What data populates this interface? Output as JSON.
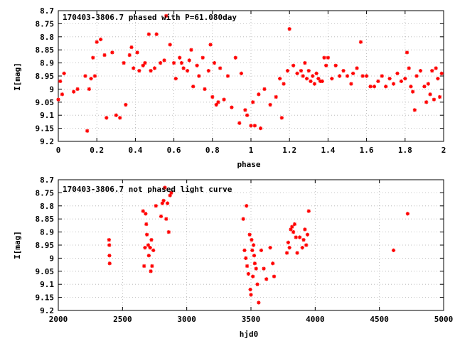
{
  "chart_data": [
    {
      "type": "scatter",
      "title": "170403-3806.7 phased with P=61.080day",
      "xlabel": "phase",
      "ylabel": "I[mag]",
      "xlim": [
        0,
        2
      ],
      "ylim": [
        8.7,
        9.2
      ],
      "y_inverted": true,
      "grid": true,
      "marker_color": "#ff0000",
      "xticks": [
        "0",
        "0.2",
        "0.4",
        "0.6",
        "0.8",
        "1",
        "1.2",
        "1.4",
        "1.6",
        "1.8",
        "2"
      ],
      "yticks": [
        "8.7",
        "8.75",
        "8.8",
        "8.85",
        "8.9",
        "8.95",
        "9",
        "9.05",
        "9.1",
        "9.15",
        "9.2"
      ],
      "series": [
        {
          "points": [
            [
              0.0,
              9.04
            ],
            [
              0.01,
              8.97
            ],
            [
              0.02,
              9.02
            ],
            [
              0.03,
              8.94
            ],
            [
              0.08,
              9.01
            ],
            [
              0.1,
              9.0
            ],
            [
              0.14,
              8.95
            ],
            [
              0.15,
              9.16
            ],
            [
              0.16,
              9.0
            ],
            [
              0.17,
              8.96
            ],
            [
              0.18,
              8.88
            ],
            [
              0.19,
              8.95
            ],
            [
              0.2,
              8.82
            ],
            [
              0.22,
              8.81
            ],
            [
              0.24,
              8.87
            ],
            [
              0.25,
              9.11
            ],
            [
              0.28,
              8.86
            ],
            [
              0.3,
              9.1
            ],
            [
              0.32,
              9.11
            ],
            [
              0.34,
              8.9
            ],
            [
              0.35,
              9.06
            ],
            [
              0.37,
              8.87
            ],
            [
              0.38,
              8.84
            ],
            [
              0.39,
              8.92
            ],
            [
              0.41,
              8.86
            ],
            [
              0.42,
              8.93
            ],
            [
              0.44,
              8.91
            ],
            [
              0.45,
              8.9
            ],
            [
              0.47,
              8.79
            ],
            [
              0.48,
              8.93
            ],
            [
              0.5,
              8.92
            ],
            [
              0.51,
              8.79
            ],
            [
              0.53,
              8.9
            ],
            [
              0.55,
              8.89
            ],
            [
              0.56,
              8.72
            ],
            [
              0.58,
              8.83
            ],
            [
              0.6,
              8.9
            ],
            [
              0.61,
              8.96
            ],
            [
              0.63,
              8.88
            ],
            [
              0.64,
              8.9
            ],
            [
              0.65,
              8.92
            ],
            [
              0.67,
              8.93
            ],
            [
              0.68,
              8.89
            ],
            [
              0.69,
              8.85
            ],
            [
              0.7,
              8.99
            ],
            [
              0.72,
              8.91
            ],
            [
              0.73,
              8.95
            ],
            [
              0.75,
              8.88
            ],
            [
              0.76,
              9.0
            ],
            [
              0.78,
              8.93
            ],
            [
              0.79,
              8.83
            ],
            [
              0.8,
              9.03
            ],
            [
              0.81,
              8.9
            ],
            [
              0.82,
              9.06
            ],
            [
              0.83,
              9.05
            ],
            [
              0.84,
              8.92
            ],
            [
              0.86,
              9.04
            ],
            [
              0.88,
              8.95
            ],
            [
              0.9,
              9.07
            ],
            [
              0.92,
              8.88
            ],
            [
              0.94,
              9.13
            ],
            [
              0.95,
              8.94
            ],
            [
              0.97,
              9.08
            ],
            [
              0.98,
              9.1
            ],
            [
              1.0,
              9.14
            ],
            [
              1.01,
              9.05
            ],
            [
              1.02,
              9.14
            ],
            [
              1.04,
              9.02
            ],
            [
              1.05,
              9.15
            ],
            [
              1.07,
              9.0
            ],
            [
              1.1,
              9.06
            ],
            [
              1.13,
              9.03
            ],
            [
              1.15,
              8.96
            ],
            [
              1.16,
              9.11
            ],
            [
              1.17,
              8.98
            ],
            [
              1.19,
              8.93
            ],
            [
              1.2,
              8.77
            ],
            [
              1.22,
              8.91
            ],
            [
              1.24,
              8.94
            ],
            [
              1.26,
              8.93
            ],
            [
              1.27,
              8.95
            ],
            [
              1.28,
              8.9
            ],
            [
              1.29,
              8.96
            ],
            [
              1.3,
              8.93
            ],
            [
              1.31,
              8.97
            ],
            [
              1.32,
              8.95
            ],
            [
              1.33,
              8.98
            ],
            [
              1.34,
              8.94
            ],
            [
              1.35,
              8.96
            ],
            [
              1.36,
              8.97
            ],
            [
              1.37,
              8.97
            ],
            [
              1.38,
              8.88
            ],
            [
              1.39,
              8.91
            ],
            [
              1.4,
              8.88
            ],
            [
              1.42,
              8.96
            ],
            [
              1.44,
              8.91
            ],
            [
              1.46,
              8.95
            ],
            [
              1.48,
              8.93
            ],
            [
              1.5,
              8.95
            ],
            [
              1.52,
              8.98
            ],
            [
              1.53,
              8.94
            ],
            [
              1.55,
              8.92
            ],
            [
              1.57,
              8.82
            ],
            [
              1.58,
              8.95
            ],
            [
              1.6,
              8.95
            ],
            [
              1.62,
              8.99
            ],
            [
              1.64,
              8.99
            ],
            [
              1.66,
              8.97
            ],
            [
              1.68,
              8.95
            ],
            [
              1.7,
              8.99
            ],
            [
              1.72,
              8.96
            ],
            [
              1.74,
              8.98
            ],
            [
              1.76,
              8.94
            ],
            [
              1.78,
              8.97
            ],
            [
              1.8,
              8.96
            ],
            [
              1.81,
              8.86
            ],
            [
              1.82,
              8.92
            ],
            [
              1.83,
              8.99
            ],
            [
              1.84,
              9.01
            ],
            [
              1.85,
              9.08
            ],
            [
              1.86,
              8.95
            ],
            [
              1.88,
              8.93
            ],
            [
              1.9,
              8.99
            ],
            [
              1.91,
              9.05
            ],
            [
              1.92,
              8.98
            ],
            [
              1.93,
              9.02
            ],
            [
              1.94,
              8.93
            ],
            [
              1.95,
              9.04
            ],
            [
              1.96,
              8.92
            ],
            [
              1.97,
              8.96
            ],
            [
              1.98,
              9.03
            ],
            [
              1.99,
              8.94
            ]
          ]
        }
      ]
    },
    {
      "type": "scatter",
      "title": "170403-3806.7 not phased light curve",
      "xlabel": "hjd0",
      "ylabel": "I[mag]",
      "xlim": [
        2000,
        5000
      ],
      "ylim": [
        8.7,
        9.2
      ],
      "y_inverted": true,
      "grid": true,
      "marker_color": "#ff0000",
      "xticks": [
        "2000",
        "2500",
        "3000",
        "3500",
        "4000",
        "4500",
        "5000"
      ],
      "yticks": [
        "8.7",
        "8.75",
        "8.8",
        "8.85",
        "8.9",
        "8.95",
        "9",
        "9.05",
        "9.1",
        "9.15",
        "9.2"
      ],
      "series": [
        {
          "points": [
            [
              2395,
              8.93
            ],
            [
              2397,
              8.95
            ],
            [
              2398,
              8.99
            ],
            [
              2400,
              9.02
            ],
            [
              2660,
              8.82
            ],
            [
              2668,
              9.03
            ],
            [
              2675,
              8.96
            ],
            [
              2680,
              8.83
            ],
            [
              2685,
              8.87
            ],
            [
              2690,
              8.91
            ],
            [
              2700,
              8.95
            ],
            [
              2705,
              8.99
            ],
            [
              2715,
              8.96
            ],
            [
              2720,
              9.05
            ],
            [
              2725,
              8.93
            ],
            [
              2730,
              9.03
            ],
            [
              2740,
              8.97
            ],
            [
              2760,
              8.8
            ],
            [
              2800,
              8.84
            ],
            [
              2810,
              8.79
            ],
            [
              2820,
              8.78
            ],
            [
              2830,
              8.73
            ],
            [
              2840,
              8.85
            ],
            [
              2850,
              8.79
            ],
            [
              2860,
              8.9
            ],
            [
              2870,
              8.76
            ],
            [
              2880,
              8.75
            ],
            [
              3440,
              8.85
            ],
            [
              3450,
              8.97
            ],
            [
              3460,
              9.0
            ],
            [
              3465,
              8.8
            ],
            [
              3470,
              9.03
            ],
            [
              3480,
              9.06
            ],
            [
              3490,
              8.91
            ],
            [
              3495,
              9.12
            ],
            [
              3500,
              9.14
            ],
            [
              3505,
              8.93
            ],
            [
              3510,
              8.97
            ],
            [
              3515,
              9.07
            ],
            [
              3520,
              8.95
            ],
            [
              3525,
              8.99
            ],
            [
              3530,
              9.02
            ],
            [
              3540,
              9.04
            ],
            [
              3550,
              9.1
            ],
            [
              3560,
              9.17
            ],
            [
              3580,
              8.97
            ],
            [
              3600,
              9.04
            ],
            [
              3620,
              9.08
            ],
            [
              3650,
              8.96
            ],
            [
              3670,
              9.02
            ],
            [
              3680,
              9.07
            ],
            [
              3780,
              8.98
            ],
            [
              3790,
              8.94
            ],
            [
              3800,
              8.96
            ],
            [
              3810,
              8.89
            ],
            [
              3820,
              8.88
            ],
            [
              3830,
              8.9
            ],
            [
              3840,
              8.87
            ],
            [
              3850,
              8.92
            ],
            [
              3860,
              8.98
            ],
            [
              3880,
              8.92
            ],
            [
              3900,
              8.96
            ],
            [
              3910,
              8.93
            ],
            [
              3920,
              8.89
            ],
            [
              3930,
              8.95
            ],
            [
              3940,
              8.91
            ],
            [
              3950,
              8.82
            ],
            [
              4610,
              8.97
            ],
            [
              4720,
              8.83
            ]
          ]
        }
      ]
    }
  ]
}
